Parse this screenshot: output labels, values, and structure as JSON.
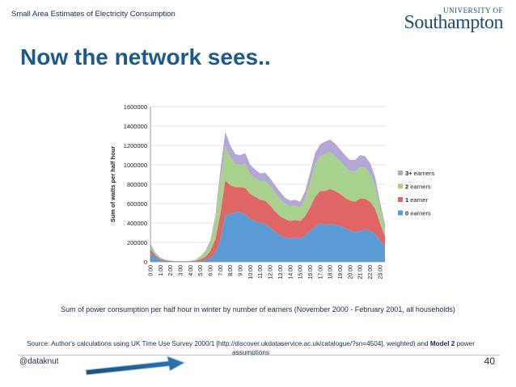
{
  "header": {
    "title": "Small Area Estimates of Electricity Consumption"
  },
  "logo": {
    "top": "UNIVERSITY OF",
    "main": "Southampton",
    "color": "#1f4e79"
  },
  "slide": {
    "title": "Now the network sees.."
  },
  "caption": "Sum of power consumption per half hour in winter by number of earners  (November 2000 - February 2001, all households)",
  "source": {
    "prefix": "Source: Author's calculations using UK Time Use Survey 2000/1 [http://discover.ukdataservice.ac.uk/catalogue/?sn=4504], weighted) and ",
    "bold": "Model 2",
    "suffix": " power assumptions"
  },
  "footer": {
    "handle": "@dataknut",
    "page": "40"
  },
  "chart_data": {
    "type": "area",
    "stacked": true,
    "ylabel": "Sum of watts per half hour",
    "xlabel": "",
    "ylim": [
      0,
      1600000
    ],
    "yticks": [
      0,
      200000,
      400000,
      600000,
      800000,
      1000000,
      1200000,
      1400000,
      1600000
    ],
    "x": [
      "0:00",
      "0:30",
      "1:00",
      "1:30",
      "2:00",
      "2:30",
      "3:00",
      "3:30",
      "4:00",
      "4:30",
      "5:00",
      "5:30",
      "6:00",
      "6:30",
      "7:00",
      "7:30",
      "8:00",
      "8:30",
      "9:00",
      "9:30",
      "10:00",
      "10:30",
      "11:00",
      "11:30",
      "12:00",
      "12:30",
      "13:00",
      "13:30",
      "14:00",
      "14:30",
      "15:00",
      "15:30",
      "16:00",
      "16:30",
      "17:00",
      "17:30",
      "18:00",
      "18:30",
      "19:00",
      "19:30",
      "20:00",
      "20:30",
      "21:00",
      "21:30",
      "22:00",
      "22:30",
      "23:00",
      "23:30"
    ],
    "xticks": [
      "0:00",
      "1:00",
      "2:00",
      "3:00",
      "4:00",
      "5:00",
      "6:00",
      "7:00",
      "8:00",
      "9:00",
      "10:00",
      "11:00",
      "12:00",
      "13:00",
      "14:00",
      "15:00",
      "16:00",
      "17:00",
      "18:00",
      "19:00",
      "20:00",
      "21:00",
      "22:00",
      "23:00"
    ],
    "legend_position": "right",
    "series": [
      {
        "name": "0 earners",
        "color": "#5b9bd5",
        "values": [
          90000,
          45000,
          20000,
          10000,
          5000,
          3000,
          2000,
          2000,
          3000,
          5000,
          10000,
          20000,
          40000,
          90000,
          220000,
          480000,
          490000,
          510000,
          510000,
          490000,
          440000,
          420000,
          400000,
          390000,
          350000,
          310000,
          270000,
          250000,
          240000,
          250000,
          240000,
          270000,
          320000,
          360000,
          400000,
          380000,
          390000,
          380000,
          370000,
          350000,
          320000,
          300000,
          320000,
          330000,
          320000,
          290000,
          220000,
          150000
        ]
      },
      {
        "name": "1 earner",
        "color": "#e06666",
        "values": [
          40000,
          20000,
          10000,
          6000,
          3000,
          2000,
          2000,
          2000,
          3000,
          5000,
          15000,
          30000,
          70000,
          140000,
          270000,
          360000,
          300000,
          260000,
          260000,
          270000,
          260000,
          250000,
          240000,
          240000,
          230000,
          210000,
          200000,
          190000,
          180000,
          180000,
          180000,
          200000,
          240000,
          310000,
          330000,
          350000,
          360000,
          350000,
          330000,
          310000,
          310000,
          320000,
          330000,
          320000,
          300000,
          260000,
          180000,
          110000
        ]
      },
      {
        "name": "2 earners",
        "color": "#a9d18e",
        "values": [
          40000,
          20000,
          10000,
          5000,
          3000,
          2000,
          1000,
          1000,
          3000,
          8000,
          25000,
          50000,
          90000,
          200000,
          350000,
          350000,
          290000,
          240000,
          230000,
          250000,
          200000,
          190000,
          190000,
          200000,
          200000,
          190000,
          180000,
          160000,
          150000,
          150000,
          140000,
          180000,
          260000,
          330000,
          360000,
          380000,
          380000,
          360000,
          340000,
          320000,
          310000,
          310000,
          330000,
          320000,
          290000,
          240000,
          160000,
          90000
        ]
      },
      {
        "name": "3+ earners",
        "color": "#b4a7d6",
        "values": [
          20000,
          8000,
          4000,
          2000,
          1000,
          1000,
          1000,
          1000,
          1000,
          2000,
          5000,
          10000,
          20000,
          40000,
          100000,
          150000,
          120000,
          100000,
          100000,
          110000,
          100000,
          90000,
          80000,
          90000,
          80000,
          80000,
          70000,
          60000,
          60000,
          60000,
          60000,
          80000,
          100000,
          120000,
          120000,
          130000,
          130000,
          130000,
          120000,
          120000,
          110000,
          120000,
          120000,
          120000,
          110000,
          90000,
          60000,
          40000
        ]
      }
    ]
  }
}
